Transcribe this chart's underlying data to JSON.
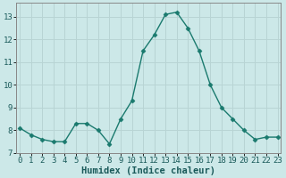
{
  "x": [
    0,
    1,
    2,
    3,
    4,
    5,
    6,
    7,
    8,
    9,
    10,
    11,
    12,
    13,
    14,
    15,
    16,
    17,
    18,
    19,
    20,
    21,
    22,
    23
  ],
  "y": [
    8.1,
    7.8,
    7.6,
    7.5,
    7.5,
    8.3,
    8.3,
    8.0,
    7.4,
    8.5,
    9.3,
    11.5,
    12.2,
    13.1,
    13.2,
    12.5,
    11.5,
    10.0,
    9.0,
    8.5,
    8.0,
    7.6,
    7.7,
    7.7
  ],
  "line_color": "#1a7a6e",
  "marker_color": "#1a7a6e",
  "bg_color": "#cce8e8",
  "grid_color": "#b8d4d4",
  "xlabel": "Humidex (Indice chaleur)",
  "xlabel_fontsize": 7.5,
  "ylim": [
    7,
    13.6
  ],
  "yticks": [
    7,
    8,
    9,
    10,
    11,
    12,
    13
  ],
  "xticks": [
    0,
    1,
    2,
    3,
    4,
    5,
    6,
    7,
    8,
    9,
    10,
    11,
    12,
    13,
    14,
    15,
    16,
    17,
    18,
    19,
    20,
    21,
    22,
    23
  ],
  "tick_fontsize": 6.5,
  "line_width": 1.0,
  "marker_size": 2.5,
  "xlim_left": -0.3,
  "xlim_right": 23.3
}
